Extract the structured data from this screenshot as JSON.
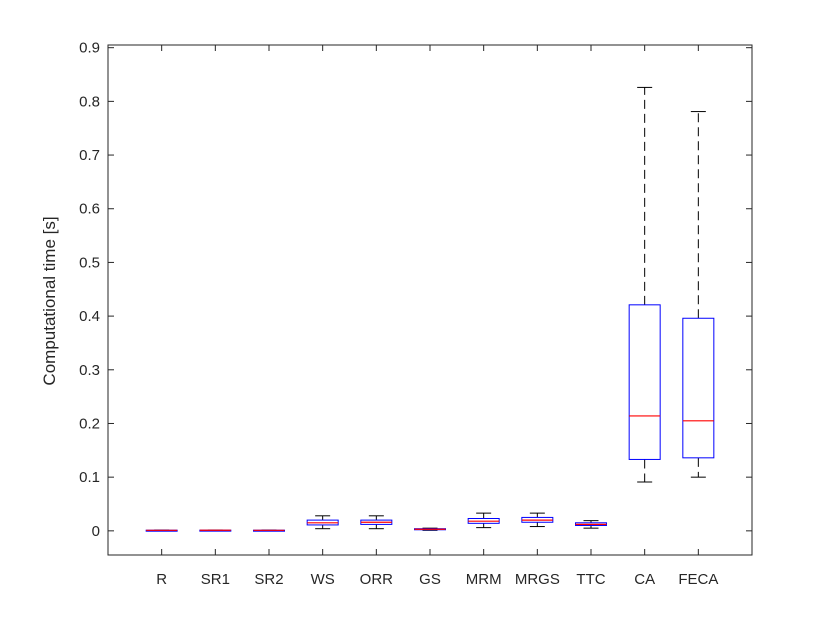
{
  "chart_data": {
    "type": "boxplot",
    "ylabel": "Computational time [s]",
    "xlabel": "",
    "title": "",
    "ylim": [
      -0.045,
      0.905
    ],
    "yticks": [
      0,
      0.1,
      0.2,
      0.3,
      0.4,
      0.5,
      0.6,
      0.7,
      0.8,
      0.9
    ],
    "ytick_labels": [
      "0",
      "0.1",
      "0.2",
      "0.3",
      "0.4",
      "0.5",
      "0.6",
      "0.7",
      "0.8",
      "0.9"
    ],
    "categories": [
      "R",
      "SR1",
      "SR2",
      "WS",
      "ORR",
      "GS",
      "MRM",
      "MRGS",
      "TTC",
      "CA",
      "FECA"
    ],
    "boxes": [
      {
        "category": "R",
        "whisker_low": 0.0005,
        "q1": 0.0008,
        "median": 0.001,
        "q3": 0.0012,
        "whisker_high": 0.0015
      },
      {
        "category": "SR1",
        "whisker_low": 0.0006,
        "q1": 0.0009,
        "median": 0.0011,
        "q3": 0.0013,
        "whisker_high": 0.0016
      },
      {
        "category": "SR2",
        "whisker_low": 0.0005,
        "q1": 0.0008,
        "median": 0.001,
        "q3": 0.0012,
        "whisker_high": 0.0015
      },
      {
        "category": "WS",
        "whisker_low": 0.004,
        "q1": 0.011,
        "median": 0.015,
        "q3": 0.02,
        "whisker_high": 0.028
      },
      {
        "category": "ORR",
        "whisker_low": 0.004,
        "q1": 0.012,
        "median": 0.016,
        "q3": 0.02,
        "whisker_high": 0.028
      },
      {
        "category": "GS",
        "whisker_low": 0.001,
        "q1": 0.002,
        "median": 0.003,
        "q3": 0.004,
        "whisker_high": 0.005
      },
      {
        "category": "MRM",
        "whisker_low": 0.006,
        "q1": 0.014,
        "median": 0.018,
        "q3": 0.023,
        "whisker_high": 0.033
      },
      {
        "category": "MRGS",
        "whisker_low": 0.008,
        "q1": 0.016,
        "median": 0.02,
        "q3": 0.025,
        "whisker_high": 0.033
      },
      {
        "category": "TTC",
        "whisker_low": 0.005,
        "q1": 0.01,
        "median": 0.012,
        "q3": 0.015,
        "whisker_high": 0.019
      },
      {
        "category": "CA",
        "whisker_low": 0.091,
        "q1": 0.133,
        "median": 0.214,
        "q3": 0.421,
        "whisker_high": 0.826
      },
      {
        "category": "FECA",
        "whisker_low": 0.1,
        "q1": 0.136,
        "median": 0.205,
        "q3": 0.396,
        "whisker_high": 0.781
      }
    ],
    "colors": {
      "box": "#0000ff",
      "median": "#ff0000",
      "whisker": "#000000",
      "axis": "#262626"
    }
  }
}
